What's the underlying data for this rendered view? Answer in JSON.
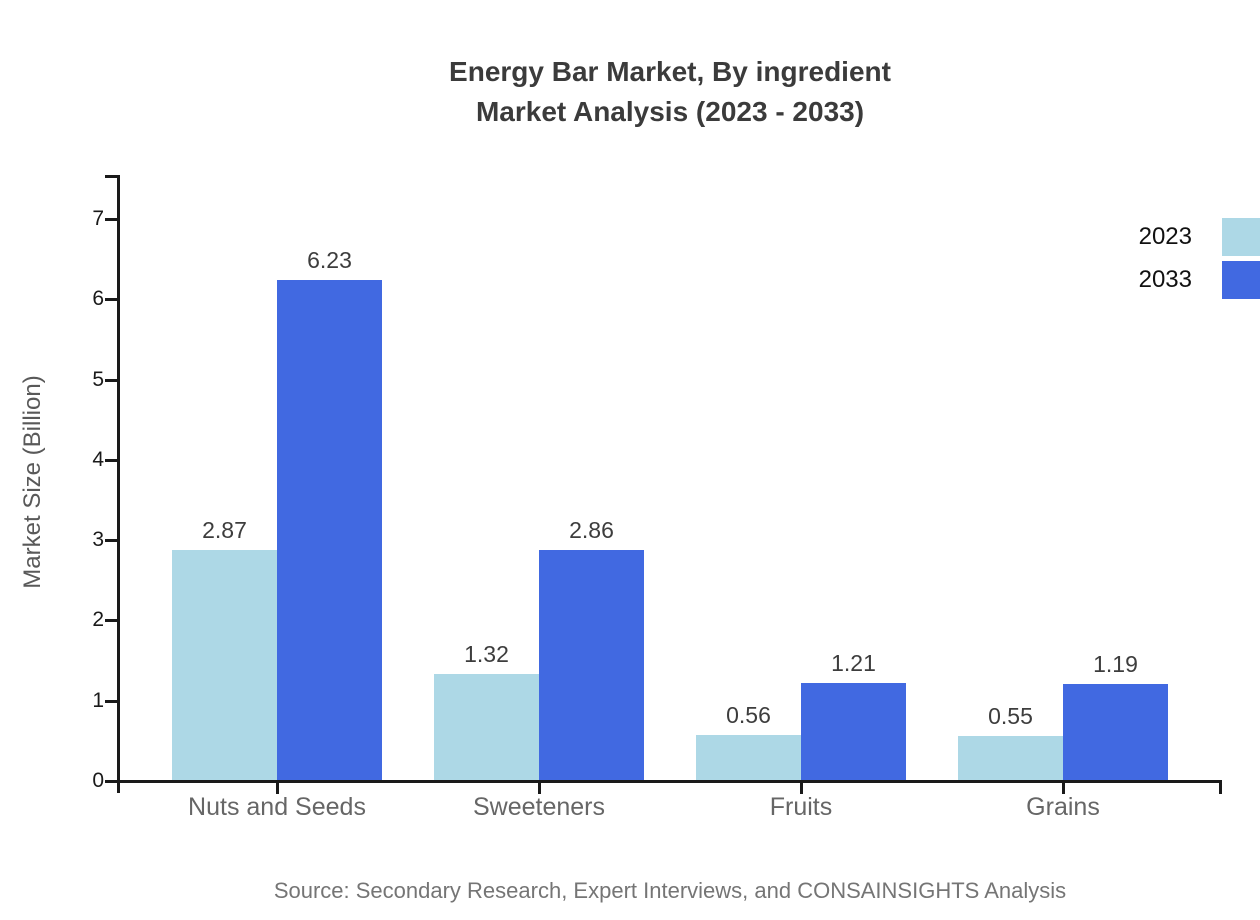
{
  "chart_data": {
    "type": "bar",
    "title": "Energy Bar Market, By ingredient",
    "subtitle": "Market Analysis (2023 - 2033)",
    "ylabel": "Market Size (Billion)",
    "xlabel": "",
    "categories": [
      "Nuts and Seeds",
      "Sweeteners",
      "Fruits",
      "Grains"
    ],
    "series": [
      {
        "name": "2023",
        "color": "#add8e6",
        "values": [
          2.87,
          1.32,
          0.56,
          0.55
        ]
      },
      {
        "name": "2033",
        "color": "#4169e1",
        "values": [
          6.23,
          2.86,
          1.21,
          1.19
        ]
      }
    ],
    "value_labels": [
      "2.87",
      "6.23",
      "1.32",
      "2.86",
      "0.56",
      "1.21",
      "0.55",
      "1.19"
    ],
    "ylim": [
      0,
      7.5
    ],
    "yticks": [
      0,
      1,
      2,
      3,
      4,
      5,
      6,
      7
    ],
    "grid": false,
    "legend_position": "top-right",
    "source_note": "Source: Secondary Research, Expert Interviews, and CONSAINSIGHTS Analysis"
  },
  "colors": {
    "axis": "#1a1a1a",
    "title": "#3b3b3b",
    "category_label": "#666666",
    "value_label": "#3d3d3d",
    "axis_label": "#595959",
    "source": "#757575",
    "series_2023": "#add8e6",
    "series_2033": "#4169e1"
  }
}
